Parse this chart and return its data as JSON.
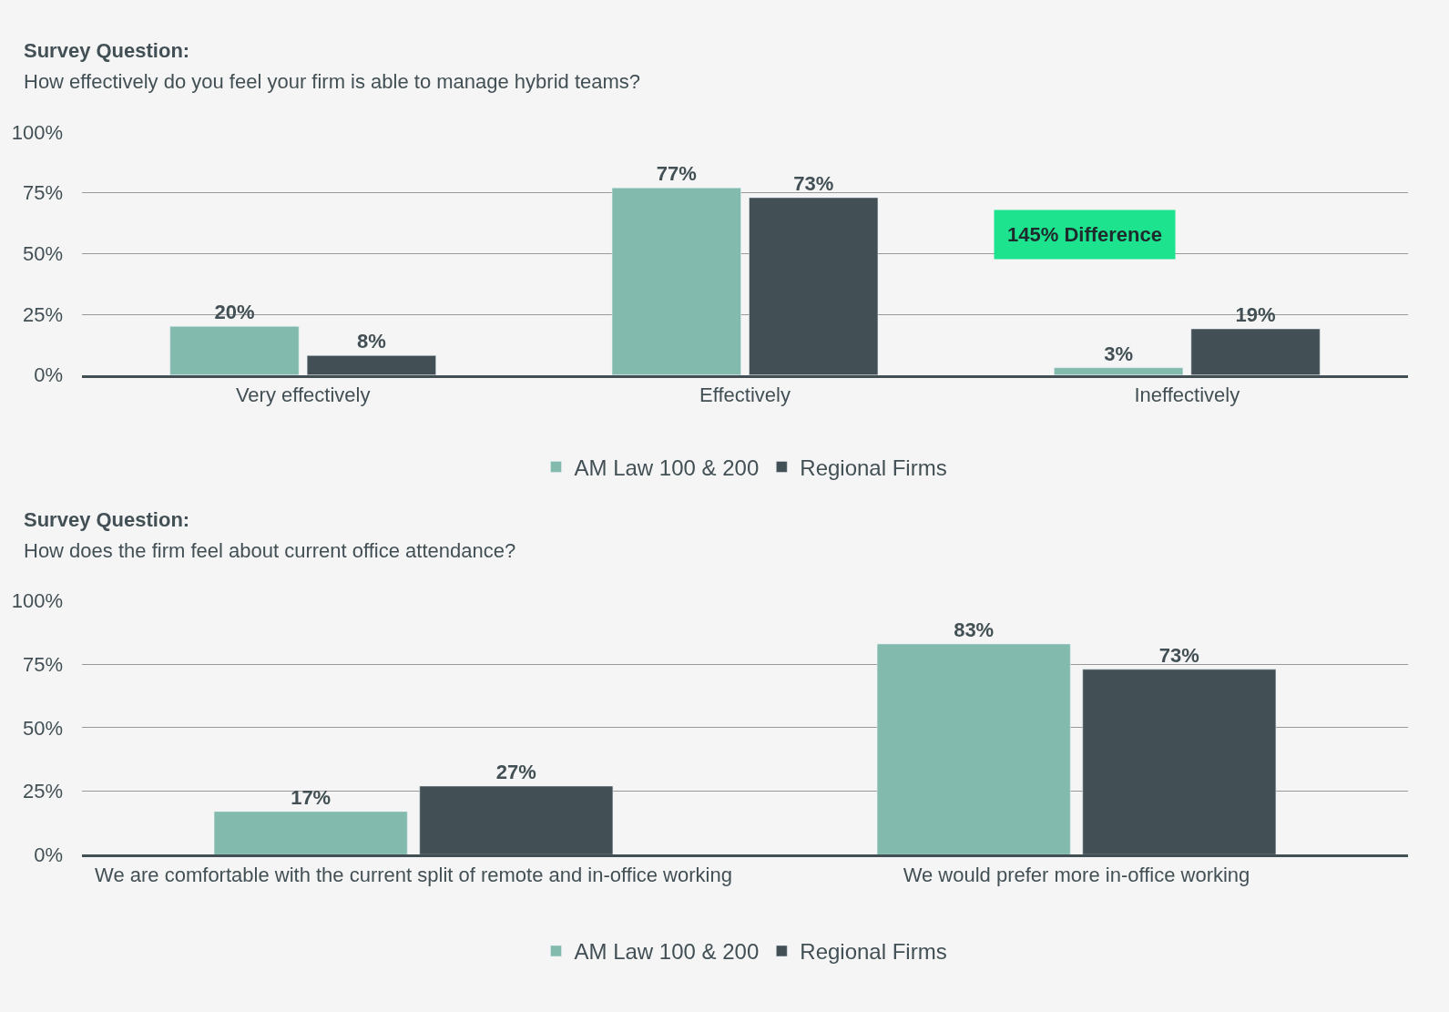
{
  "chart_data": [
    {
      "type": "bar",
      "title": "Survey Question:",
      "subtitle": "How effectively do you feel your firm is able to manage hybrid teams?",
      "categories": [
        "Very effectively",
        "Effectively",
        "Ineffectively"
      ],
      "series": [
        {
          "name": "AM Law 100 & 200",
          "color": "#82bbad",
          "values": [
            20,
            77,
            3
          ],
          "value_labels": [
            "20%",
            "77%",
            "3%"
          ]
        },
        {
          "name": "Regional Firms",
          "color": "#425055",
          "values": [
            8,
            73,
            19
          ],
          "value_labels": [
            "8%",
            "73%",
            "19%"
          ]
        }
      ],
      "ylim": [
        0,
        100
      ],
      "yticks": [
        {
          "value": 0,
          "label": "0%"
        },
        {
          "value": 25,
          "label": "25%"
        },
        {
          "value": 50,
          "label": "50%"
        },
        {
          "value": 75,
          "label": "75%"
        },
        {
          "value": 100,
          "label": "100%"
        }
      ],
      "grid": "y",
      "legend": "bottom",
      "annotations": [
        "145% Difference"
      ]
    },
    {
      "type": "bar",
      "title": "Survey Question:",
      "subtitle": "How does the firm feel about current office attendance?",
      "categories": [
        "We are comfortable with the current split of remote and in-office working",
        "We would prefer more in-office working"
      ],
      "series": [
        {
          "name": "AM Law 100 & 200",
          "color": "#82bbad",
          "values": [
            17,
            83
          ],
          "value_labels": [
            "17%",
            "83%"
          ]
        },
        {
          "name": "Regional Firms",
          "color": "#425055",
          "values": [
            27,
            73
          ],
          "value_labels": [
            "27%",
            "73%"
          ]
        }
      ],
      "ylim": [
        0,
        100
      ],
      "yticks": [
        {
          "value": 0,
          "label": "0%"
        },
        {
          "value": 25,
          "label": "25%"
        },
        {
          "value": 50,
          "label": "50%"
        },
        {
          "value": 75,
          "label": "75%"
        },
        {
          "value": 100,
          "label": "100%"
        }
      ],
      "grid": "y",
      "legend": "bottom"
    }
  ]
}
